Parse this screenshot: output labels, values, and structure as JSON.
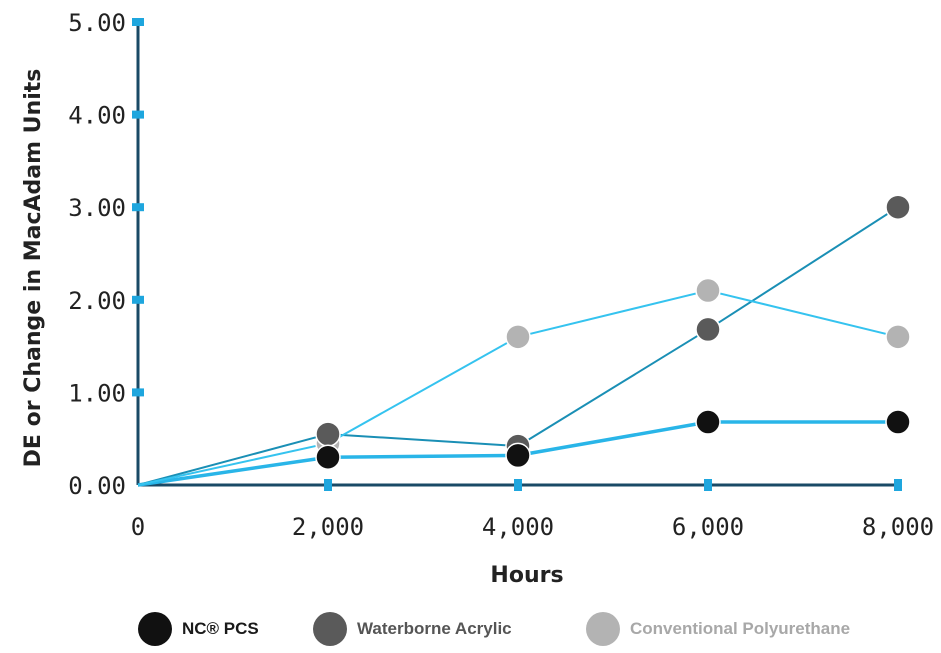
{
  "chart_data": {
    "type": "line",
    "xlabel": "Hours",
    "ylabel": "DE or Change in MacAdam Units",
    "x": [
      0,
      2000,
      4000,
      6000,
      8000
    ],
    "x_tick_labels": [
      "0",
      "2,000",
      "4,000",
      "6,000",
      "8,000"
    ],
    "y_tick_labels": [
      "0.00",
      "1.00",
      "2.00",
      "3.00",
      "4.00",
      "5.00"
    ],
    "xlim": [
      0,
      8000
    ],
    "ylim": [
      0,
      5
    ],
    "series": [
      {
        "name": "NC® PCS",
        "values": [
          0,
          0.3,
          0.32,
          0.68,
          0.68
        ],
        "marker_color": "#111111",
        "line_color": "#29b5e8"
      },
      {
        "name": "Waterborne Acrylic",
        "values": [
          0,
          0.55,
          0.42,
          1.68,
          3.0
        ],
        "marker_color": "#5a5a5a",
        "line_color": "#1a8fb5"
      },
      {
        "name": "Conventional Polyurethane",
        "values": [
          0,
          0.45,
          1.6,
          2.1,
          1.6
        ],
        "marker_color": "#b3b3b3",
        "line_color": "#35c3ef"
      }
    ],
    "legend_position": "bottom",
    "grid": false
  },
  "legend": {
    "items": [
      {
        "label": "NC® PCS",
        "color": "#111111",
        "text_color": "#1a1a1a"
      },
      {
        "label": "Waterborne Acrylic",
        "color": "#5a5a5a",
        "text_color": "#555555"
      },
      {
        "label": "Conventional Polyurethane",
        "color": "#b3b3b3",
        "text_color": "#a8a8a8"
      }
    ]
  },
  "colors": {
    "axis": "#1a4a66",
    "tick_marker": "#1ea6de"
  }
}
